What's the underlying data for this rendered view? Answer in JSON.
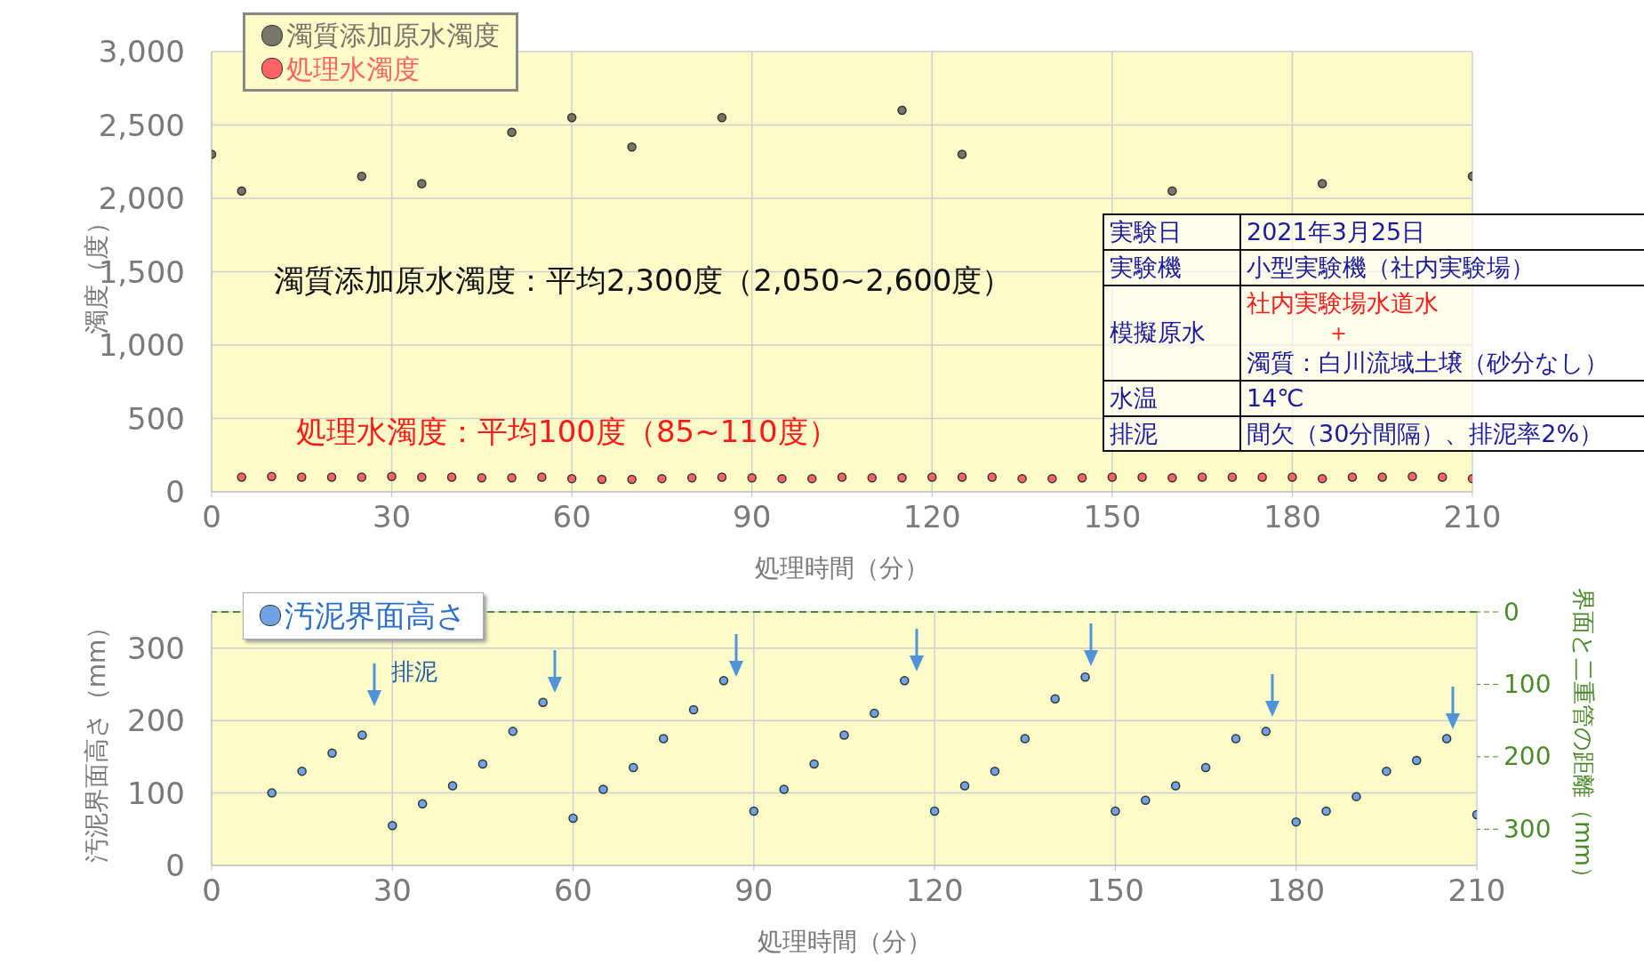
{
  "chart_data": [
    {
      "type": "scatter",
      "xlabel": "処理時間（分）",
      "ylabel": "濁度（度）",
      "xlim": [
        0,
        210
      ],
      "xticks": [
        0,
        30,
        60,
        90,
        120,
        150,
        180,
        210
      ],
      "ylim": [
        0,
        3000
      ],
      "yticks": [
        0,
        {
          "value": 500,
          "label": "500"
        },
        {
          "value": 1000,
          "label": "1,000"
        },
        {
          "value": 1500,
          "label": "1,500"
        },
        {
          "value": 2000,
          "label": "2,000"
        },
        {
          "value": 2500,
          "label": "2,500"
        },
        {
          "value": 3000,
          "label": "3,000"
        }
      ],
      "grid": true,
      "legend": "top left",
      "marker": "circle",
      "series": [
        {
          "name": "濁質添加原水濁度",
          "color": "#77756a",
          "x": [
            0,
            5,
            25,
            35,
            50,
            60,
            70,
            85,
            115,
            125,
            160,
            185,
            210
          ],
          "values": [
            2300,
            2050,
            2150,
            2100,
            2450,
            2550,
            2350,
            2550,
            2600,
            2300,
            2050,
            2100,
            2150
          ]
        },
        {
          "name": "処理水濁度",
          "color": "#ff6464",
          "x": [
            5,
            10,
            15,
            20,
            25,
            30,
            35,
            40,
            45,
            50,
            55,
            60,
            65,
            70,
            75,
            80,
            85,
            90,
            95,
            100,
            105,
            110,
            115,
            120,
            125,
            130,
            135,
            140,
            145,
            150,
            155,
            160,
            165,
            170,
            175,
            180,
            185,
            190,
            195,
            200,
            205,
            210
          ],
          "values": [
            100,
            105,
            100,
            100,
            100,
            105,
            100,
            100,
            95,
            95,
            100,
            90,
            85,
            85,
            90,
            95,
            100,
            95,
            90,
            90,
            100,
            95,
            95,
            100,
            100,
            100,
            90,
            90,
            95,
            100,
            100,
            95,
            100,
            100,
            100,
            100,
            90,
            100,
            100,
            105,
            100,
            90
          ]
        }
      ],
      "annotations": [
        "濁質添加原水濁度：平均2,300度（2,050~2,600度）",
        "処理水濁度：平均100度（85~110度）",
        "実験日",
        "2021年3月25日",
        "実験機",
        "小型実験機（社内実験場）",
        "模擬原水",
        "社内実験場水道水",
        "＋",
        "濁質：白川流域土壌（砂分なし）",
        "水温",
        "14℃",
        "排泥",
        "間欠（30分間隔）、排泥率2%）"
      ]
    },
    {
      "type": "scatter",
      "xlabel": "処理時間（分）",
      "ylabel": "汚泥界面高さ（mm）",
      "y2label": "界面と二重管の距離（mm）",
      "xlim": [
        0,
        210
      ],
      "xticks": [
        0,
        30,
        60,
        90,
        120,
        150,
        180,
        210
      ],
      "ylim": [
        0,
        350
      ],
      "yticks": [
        0,
        100,
        200,
        300
      ],
      "y2lim": [
        350,
        0
      ],
      "y2ticks": [
        0,
        100,
        200,
        300
      ],
      "grid": true,
      "legend": "top left",
      "marker": "circle",
      "series": [
        {
          "name": "汚泥界面高さ",
          "color": "#6fa3e6",
          "x": [
            10,
            15,
            20,
            25,
            30,
            35,
            40,
            45,
            50,
            55,
            60,
            65,
            70,
            75,
            80,
            85,
            90,
            95,
            100,
            105,
            110,
            115,
            120,
            125,
            130,
            135,
            140,
            145,
            150,
            155,
            160,
            165,
            170,
            175,
            180,
            185,
            190,
            195,
            200,
            205,
            210
          ],
          "values": [
            100,
            130,
            155,
            180,
            55,
            85,
            110,
            140,
            185,
            225,
            65,
            105,
            135,
            175,
            215,
            255,
            75,
            105,
            140,
            180,
            210,
            255,
            75,
            110,
            130,
            175,
            230,
            260,
            75,
            90,
            110,
            135,
            175,
            185,
            60,
            75,
            95,
            130,
            145,
            175,
            70
          ]
        }
      ],
      "ref_lines": [
        {
          "axis": "y2",
          "value": 0,
          "color": "#4a8a2a",
          "line_style": "dashed"
        }
      ],
      "annotations": [
        "排泥"
      ]
    }
  ]
}
